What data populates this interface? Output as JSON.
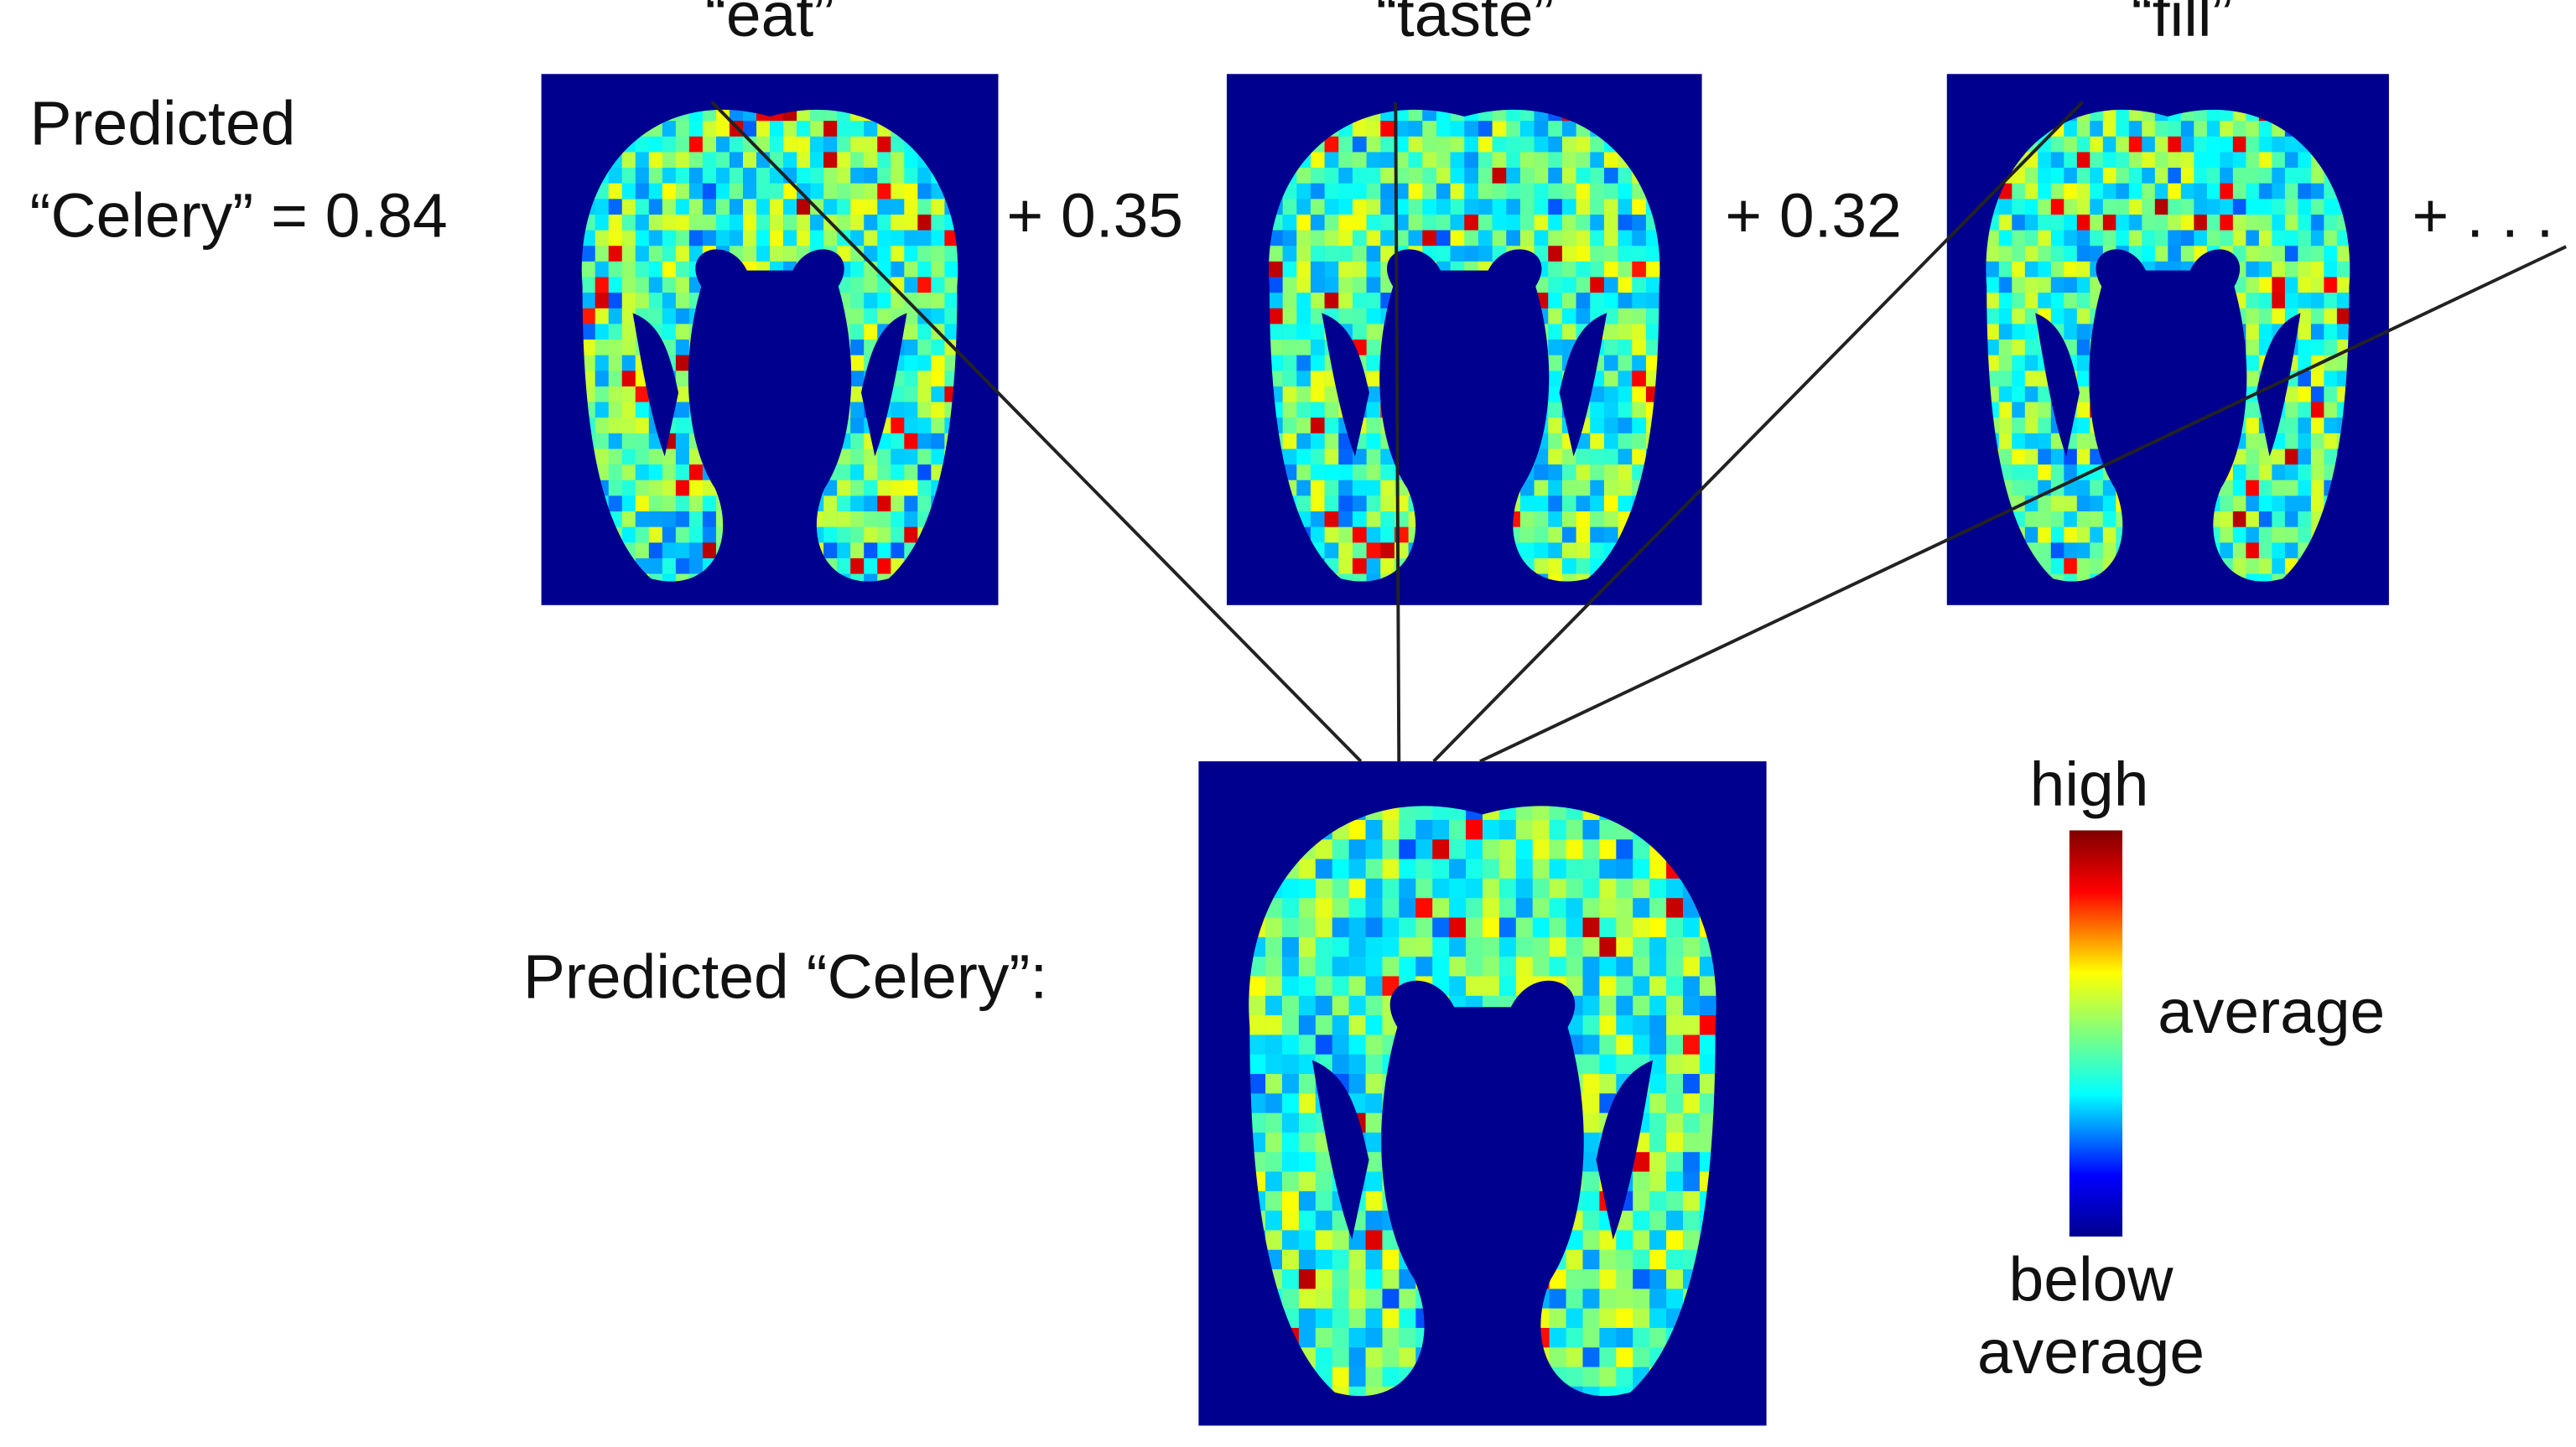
{
  "header": {
    "words": [
      "“eat”",
      "“taste”",
      "“fill”"
    ]
  },
  "equation": {
    "line1": "Predicted",
    "line2": "“Celery” = 0.84",
    "term2": "+ 0.35",
    "term3": "+ 0.32",
    "term4": "+ . . ."
  },
  "result": {
    "label": "Predicted “Celery”:"
  },
  "colorbar": {
    "high": "high",
    "mid": "average",
    "low1": "below",
    "low2": "average"
  }
}
